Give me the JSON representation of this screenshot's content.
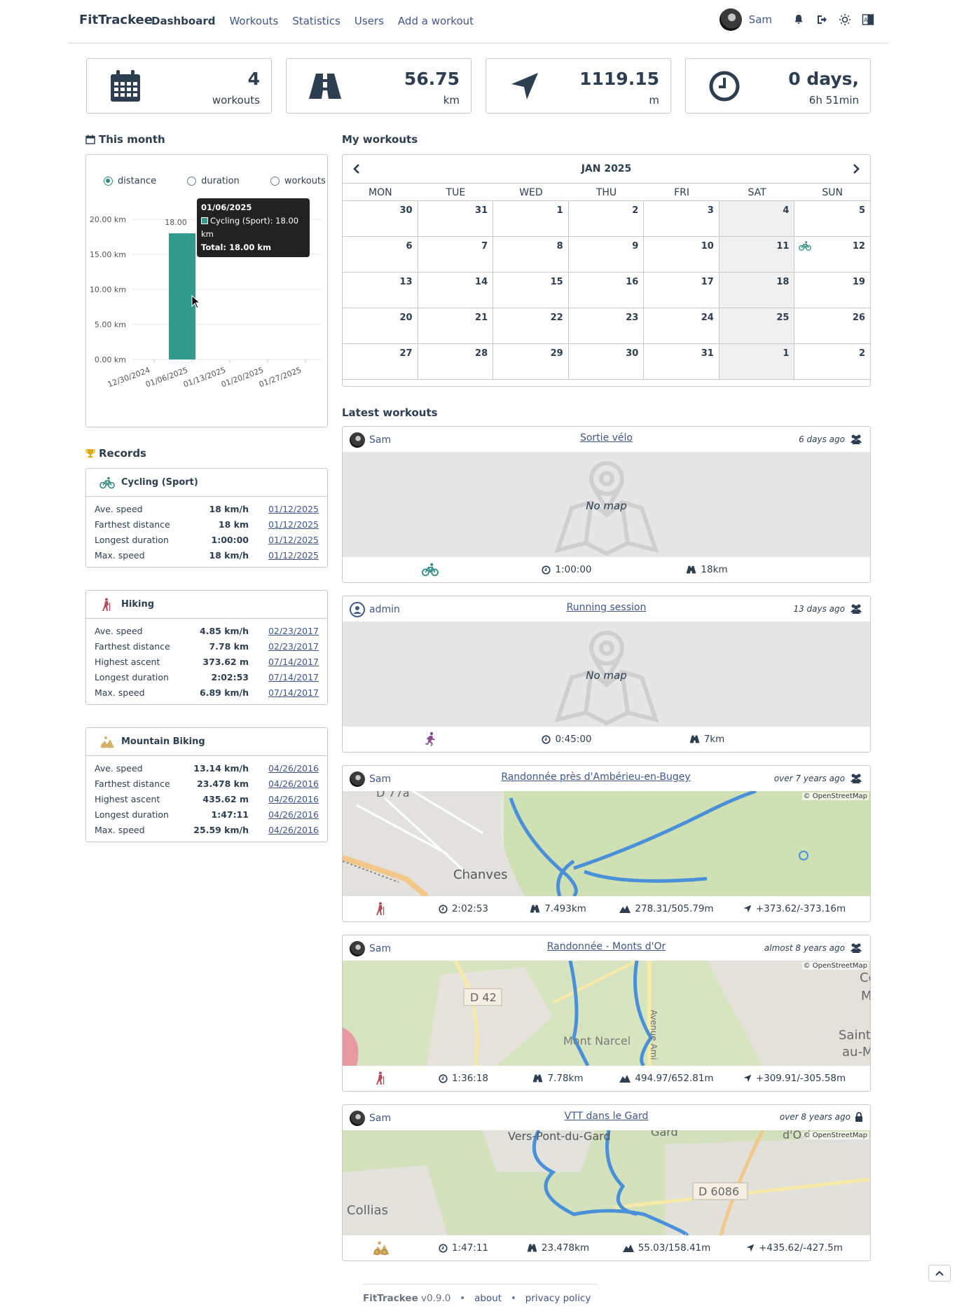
{
  "nav": {
    "brand": "FitTrackee",
    "links": [
      "Dashboard",
      "Workouts",
      "Statistics",
      "Users",
      "Add a workout"
    ],
    "user": "Sam"
  },
  "stats": [
    {
      "value": "4",
      "label": "workouts",
      "icon": "calendar-icon"
    },
    {
      "value": "56.75",
      "label": "km",
      "icon": "road-icon"
    },
    {
      "value": "1119.15",
      "label": "m",
      "icon": "location-arrow-icon"
    },
    {
      "value": "0 days,",
      "label": "6h 51min",
      "icon": "clock-icon"
    }
  ],
  "this_month": {
    "title": "This month",
    "radios": [
      "distance",
      "duration",
      "workouts"
    ],
    "selected": "distance",
    "bar_label": "18.00",
    "tooltip": {
      "date": "01/06/2025",
      "series": "Cycling (Sport): 18.00 km",
      "total": "Total: 18.00 km"
    }
  },
  "chart_data": {
    "type": "bar",
    "categories": [
      "12/30/2024",
      "01/06/2025",
      "01/13/2025",
      "01/20/2025",
      "01/27/2025"
    ],
    "series": [
      {
        "name": "Cycling (Sport)",
        "values": [
          0,
          18.0,
          0,
          0,
          0
        ],
        "color": "#329a8b"
      }
    ],
    "ylim": [
      0,
      20
    ],
    "yticks": [
      "0.00 km",
      "5.00 km",
      "10.00 km",
      "15.00 km",
      "20.00 km"
    ],
    "ytick_values": [
      0,
      5,
      10,
      15,
      20
    ]
  },
  "records": {
    "title": "Records",
    "sports": [
      {
        "name": "Cycling (Sport)",
        "icon": "cycling-icon",
        "color": "#2e8b7d",
        "rows": [
          {
            "label": "Ave. speed",
            "value": "18 km/h",
            "date": "01/12/2025"
          },
          {
            "label": "Farthest distance",
            "value": "18 km",
            "date": "01/12/2025"
          },
          {
            "label": "Longest duration",
            "value": "1:00:00",
            "date": "01/12/2025"
          },
          {
            "label": "Max. speed",
            "value": "18 km/h",
            "date": "01/12/2025"
          }
        ]
      },
      {
        "name": "Hiking",
        "icon": "hiking-icon",
        "color": "#b44b5a",
        "rows": [
          {
            "label": "Ave. speed",
            "value": "4.85 km/h",
            "date": "02/23/2017"
          },
          {
            "label": "Farthest distance",
            "value": "7.78 km",
            "date": "02/23/2017"
          },
          {
            "label": "Highest ascent",
            "value": "373.62 m",
            "date": "07/14/2017"
          },
          {
            "label": "Longest duration",
            "value": "2:02:53",
            "date": "07/14/2017"
          },
          {
            "label": "Max. speed",
            "value": "6.89 km/h",
            "date": "07/14/2017"
          }
        ]
      },
      {
        "name": "Mountain Biking",
        "icon": "mountain-biking-icon",
        "color": "#d7b16a",
        "rows": [
          {
            "label": "Ave. speed",
            "value": "13.14 km/h",
            "date": "04/26/2016"
          },
          {
            "label": "Farthest distance",
            "value": "23.478 km",
            "date": "04/26/2016"
          },
          {
            "label": "Highest ascent",
            "value": "435.62 m",
            "date": "04/26/2016"
          },
          {
            "label": "Longest duration",
            "value": "1:47:11",
            "date": "04/26/2016"
          },
          {
            "label": "Max. speed",
            "value": "25.59 km/h",
            "date": "04/26/2016"
          }
        ]
      }
    ]
  },
  "workouts_title": "My workouts",
  "calendar": {
    "month": "JAN 2025",
    "days": [
      "MON",
      "TUE",
      "WED",
      "THU",
      "FRI",
      "SAT",
      "SUN"
    ],
    "dates": [
      "30",
      "31",
      "1",
      "2",
      "3",
      "4",
      "5",
      "6",
      "7",
      "8",
      "9",
      "10",
      "11",
      "12",
      "13",
      "14",
      "15",
      "16",
      "17",
      "18",
      "19",
      "20",
      "21",
      "22",
      "23",
      "24",
      "25",
      "26",
      "27",
      "28",
      "29",
      "30",
      "31",
      "1",
      "2"
    ]
  },
  "latest_title": "Latest workouts",
  "workouts": [
    {
      "user": "Sam",
      "title": "Sortie vélo",
      "ago": "6 days ago",
      "map": "No map",
      "sport": "cycling-icon",
      "duration": "1:00:00",
      "distance": "18km",
      "visibility": "users-icon"
    },
    {
      "user": "admin",
      "title": "Running session",
      "ago": "13 days ago",
      "map": "No map",
      "sport": "running-icon",
      "duration": "0:45:00",
      "distance": "7km",
      "visibility": "users-icon"
    },
    {
      "user": "Sam",
      "title": "Randonnée près d'Ambérieu-en-Bugey",
      "ago": "over 7 years ago",
      "map": "© OpenStreetMap",
      "sport": "hiking-icon",
      "duration": "2:02:53",
      "distance": "7.493km",
      "elevation": "278.31/505.79m",
      "ascent": "+373.62/-373.16m",
      "visibility": "users-icon",
      "map_labels": [
        "D 77a",
        "Chanves"
      ]
    },
    {
      "user": "Sam",
      "title": "Randonnée - Monts d'Or",
      "ago": "almost 8 years ago",
      "map": "© OpenStreetMap",
      "sport": "hiking-icon",
      "duration": "1:36:18",
      "distance": "7.78km",
      "elevation": "494.97/652.81m",
      "ascent": "+309.91/-305.58m",
      "visibility": "users-icon",
      "map_labels": [
        "D 42",
        "Mont Narcel",
        "Avenue Ami",
        "Saint-",
        "au-M",
        "Co",
        "M"
      ]
    },
    {
      "user": "Sam",
      "title": "VTT dans le Gard",
      "ago": "over 8 years ago",
      "map": "© OpenStreetMap",
      "sport": "mountain-biking-icon",
      "duration": "1:47:11",
      "distance": "23.478km",
      "elevation": "55.03/158.41m",
      "ascent": "+435.62/-427.5m",
      "visibility": "lock-icon",
      "map_labels": [
        "Vers-Pont-du-Gard",
        "Collias",
        "D 6086",
        "Gard",
        "d'Ozi"
      ]
    }
  ],
  "footer": {
    "brand": "FitTrackee",
    "version": "v0.9.0",
    "about": "about",
    "privacy": "privacy policy"
  }
}
